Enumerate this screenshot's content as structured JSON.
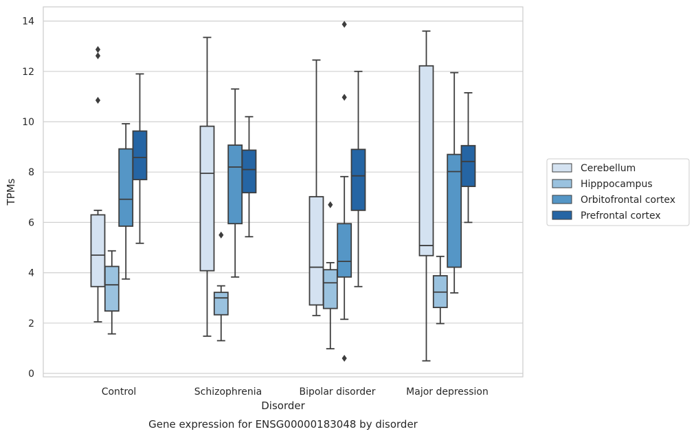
{
  "chart_data": {
    "type": "boxplot",
    "caption": "Gene expression for ENSG00000183048 by disorder",
    "xlabel": "Disorder",
    "ylabel": "TPMs",
    "ylim": [
      -0.15,
      14.55
    ],
    "yticks": [
      0,
      2,
      4,
      6,
      8,
      10,
      12,
      14
    ],
    "grid": "horizontal",
    "legend_position": "right",
    "categories": [
      "Control",
      "Schizophrenia",
      "Bipolar disorder",
      "Major depression"
    ],
    "series": [
      {
        "name": "Cerebellum",
        "color": "#d4e2f1",
        "boxes": [
          {
            "whisker_low": 2.05,
            "q1": 3.45,
            "median": 4.7,
            "q3": 6.3,
            "whisker_high": 6.48,
            "outliers": [
              10.85,
              12.62,
              12.87
            ]
          },
          {
            "whisker_low": 1.48,
            "q1": 4.08,
            "median": 7.95,
            "q3": 9.82,
            "whisker_high": 13.35,
            "outliers": []
          },
          {
            "whisker_low": 2.3,
            "q1": 2.72,
            "median": 4.22,
            "q3": 7.02,
            "whisker_high": 12.45,
            "outliers": []
          },
          {
            "whisker_low": 0.5,
            "q1": 4.68,
            "median": 5.08,
            "q3": 12.22,
            "whisker_high": 13.6,
            "outliers": []
          }
        ]
      },
      {
        "name": "Hipppocampus",
        "color": "#9ac2df",
        "boxes": [
          {
            "whisker_low": 1.57,
            "q1": 2.48,
            "median": 3.52,
            "q3": 4.25,
            "whisker_high": 4.87,
            "outliers": []
          },
          {
            "whisker_low": 1.3,
            "q1": 2.33,
            "median": 3.0,
            "q3": 3.22,
            "whisker_high": 3.48,
            "outliers": [
              5.5
            ]
          },
          {
            "whisker_low": 0.98,
            "q1": 2.58,
            "median": 3.6,
            "q3": 4.12,
            "whisker_high": 4.4,
            "outliers": [
              6.7
            ]
          },
          {
            "whisker_low": 1.98,
            "q1": 2.62,
            "median": 3.23,
            "q3": 3.88,
            "whisker_high": 4.65,
            "outliers": []
          }
        ]
      },
      {
        "name": "Orbitofrontal cortex",
        "color": "#5596c6",
        "boxes": [
          {
            "whisker_low": 3.75,
            "q1": 5.85,
            "median": 6.92,
            "q3": 8.92,
            "whisker_high": 9.92,
            "outliers": []
          },
          {
            "whisker_low": 3.83,
            "q1": 5.95,
            "median": 8.2,
            "q3": 9.07,
            "whisker_high": 11.3,
            "outliers": []
          },
          {
            "whisker_low": 2.15,
            "q1": 3.83,
            "median": 4.45,
            "q3": 5.95,
            "whisker_high": 7.82,
            "outliers": [
              0.6,
              10.97,
              13.87
            ]
          },
          {
            "whisker_low": 3.2,
            "q1": 4.22,
            "median": 8.02,
            "q3": 8.7,
            "whisker_high": 11.95,
            "outliers": []
          }
        ]
      },
      {
        "name": "Prefrontal cortex",
        "color": "#2565a4",
        "boxes": [
          {
            "whisker_low": 5.17,
            "q1": 7.7,
            "median": 8.58,
            "q3": 9.63,
            "whisker_high": 11.9,
            "outliers": []
          },
          {
            "whisker_low": 5.43,
            "q1": 7.18,
            "median": 8.1,
            "q3": 8.87,
            "whisker_high": 10.2,
            "outliers": []
          },
          {
            "whisker_low": 3.45,
            "q1": 6.48,
            "median": 7.85,
            "q3": 8.9,
            "whisker_high": 12.0,
            "outliers": []
          },
          {
            "whisker_low": 6.0,
            "q1": 7.43,
            "median": 8.42,
            "q3": 9.05,
            "whisker_high": 11.15,
            "outliers": []
          }
        ]
      }
    ]
  }
}
